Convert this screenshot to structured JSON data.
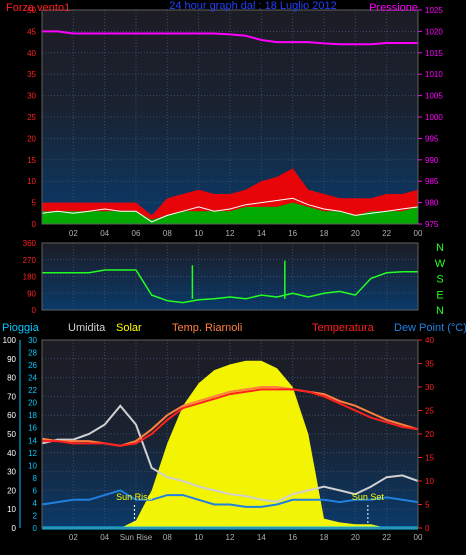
{
  "colors": {
    "wind": "#ff2020",
    "gust_fill": "#ff0000",
    "avg_fill": "#00aa00",
    "wind_line": "#ffffff",
    "pressure": "#ff00ff",
    "direction": "#22ff22",
    "rain": "#00c8ff",
    "humidity": "#d0d0d0",
    "solar": "#ffff00",
    "windchill": "#ff8040",
    "temperature": "#ff2020",
    "dewpoint": "#2080e0",
    "title": "#2040ff",
    "grid": "#3a4a6a"
  },
  "chart_data": [
    {
      "type": "area",
      "title": "24 hour graph dal : 18 Luglio 2012",
      "left_label": "Forza vento1",
      "right_label": "Pressione",
      "x_ticks": [
        "02",
        "04",
        "06",
        "08",
        "10",
        "12",
        "14",
        "16",
        "18",
        "20",
        "22",
        "00"
      ],
      "ylim_left": [
        0,
        50
      ],
      "y_ticks_left": [
        "0",
        "5",
        "10",
        "15",
        "20",
        "25",
        "30",
        "35",
        "40",
        "45",
        "50"
      ],
      "ylim_right": [
        975,
        1025
      ],
      "y_ticks_right": [
        "975",
        "980",
        "985",
        "990",
        "995",
        "1000",
        "1005",
        "1010",
        "1015",
        "1020",
        "1025"
      ],
      "x": [
        "00",
        "01",
        "02",
        "03",
        "04",
        "05",
        "06",
        "07",
        "08",
        "09",
        "10",
        "11",
        "12",
        "13",
        "14",
        "15",
        "16",
        "17",
        "18",
        "19",
        "20",
        "21",
        "22",
        "23",
        "24"
      ],
      "series": [
        {
          "key": "gust",
          "values": [
            5,
            5,
            5,
            5,
            5,
            5,
            5,
            2,
            6,
            7,
            8,
            7,
            7,
            8,
            10,
            11,
            13,
            8,
            7,
            6,
            6,
            6,
            7,
            7,
            8
          ]
        },
        {
          "key": "avg",
          "values": [
            3,
            3,
            3,
            3,
            3,
            3,
            3,
            1,
            2,
            3,
            3,
            3,
            3,
            4,
            4,
            4,
            5,
            4,
            3,
            3,
            2,
            3,
            3,
            3,
            4
          ]
        },
        {
          "key": "wind",
          "values": [
            2.5,
            3,
            2.5,
            3,
            3.5,
            3,
            3,
            0.5,
            2,
            3,
            4,
            3,
            3.5,
            4.5,
            5,
            5.5,
            6,
            4.5,
            3.5,
            3,
            2,
            2.5,
            3,
            3.5,
            4
          ]
        },
        {
          "key": "pressure",
          "values": [
            1020,
            1020,
            1019.5,
            1019.5,
            1019.5,
            1019.5,
            1019.5,
            1019.5,
            1019.5,
            1019.5,
            1019.5,
            1019.5,
            1019.3,
            1019,
            1018,
            1017.5,
            1017.5,
            1017.5,
            1017.2,
            1017,
            1017,
            1017,
            1017.3,
            1017.3,
            1017.3
          ]
        }
      ]
    },
    {
      "type": "line",
      "right_labels": [
        "N",
        "W",
        "S",
        "E",
        "N"
      ],
      "ylim": [
        0,
        360
      ],
      "y_ticks": [
        "0",
        "90",
        "180",
        "270",
        "360"
      ],
      "x": [
        "00",
        "01",
        "02",
        "03",
        "04",
        "05",
        "06",
        "07",
        "08",
        "09",
        "10",
        "11",
        "12",
        "13",
        "14",
        "15",
        "16",
        "17",
        "18",
        "19",
        "20",
        "21",
        "22",
        "23",
        "24"
      ],
      "series": [
        {
          "key": "direction",
          "values": [
            200,
            200,
            200,
            200,
            215,
            215,
            215,
            80,
            50,
            40,
            55,
            60,
            70,
            60,
            80,
            70,
            90,
            70,
            90,
            100,
            80,
            170,
            200,
            205,
            205
          ]
        }
      ],
      "spikes": [
        {
          "x": 9.6,
          "value": 240
        },
        {
          "x": 15.5,
          "value": 265
        }
      ]
    },
    {
      "type": "line",
      "legend": [
        "Pioggia",
        "Umidita",
        "Solar",
        "Temp. Riarnoli",
        "Temperatura",
        "Dew Point (°C)"
      ],
      "x_ticks": [
        "02",
        "04",
        "Sun Rise",
        "08",
        "10",
        "12",
        "14",
        "16",
        "18",
        "20",
        "22",
        "00"
      ],
      "ylim_outer": [
        0,
        100
      ],
      "y_ticks_outer": [
        "0",
        "10",
        "20",
        "30",
        "40",
        "50",
        "60",
        "70",
        "80",
        "90",
        "100"
      ],
      "ylim_inner": [
        0,
        30
      ],
      "y_ticks_inner": [
        "0",
        "2",
        "4",
        "6",
        "8",
        "10",
        "12",
        "14",
        "16",
        "18",
        "20",
        "22",
        "24",
        "26",
        "28",
        "30"
      ],
      "ylim_right": [
        0,
        40
      ],
      "y_ticks_right": [
        "0",
        "5",
        "10",
        "15",
        "20",
        "25",
        "30",
        "35",
        "40"
      ],
      "annotations": [
        {
          "text": "Sun Rise",
          "x": 5.9
        },
        {
          "text": "Sun Set",
          "x": 20.8
        }
      ],
      "x": [
        "00",
        "01",
        "02",
        "03",
        "04",
        "05",
        "06",
        "07",
        "08",
        "09",
        "10",
        "11",
        "12",
        "13",
        "14",
        "15",
        "16",
        "17",
        "18",
        "19",
        "20",
        "21",
        "22",
        "23",
        "24"
      ],
      "series": [
        {
          "key": "humidity",
          "values": [
            45,
            47,
            47,
            50,
            55,
            65,
            55,
            32,
            27,
            25,
            22,
            20,
            18,
            17,
            15,
            14,
            18,
            20,
            22,
            20,
            18,
            22,
            27,
            28,
            25
          ]
        },
        {
          "key": "solar",
          "values": [
            0,
            0,
            0,
            0,
            0,
            0,
            4,
            20,
            45,
            65,
            77,
            84,
            87,
            89,
            89,
            85,
            75,
            50,
            5,
            3,
            2,
            2,
            0,
            0,
            0
          ]
        },
        {
          "key": "windchill",
          "values": [
            19,
            18.5,
            18.5,
            18.5,
            18,
            17.5,
            18.5,
            21,
            24,
            26,
            27,
            28,
            29,
            29.5,
            30,
            30,
            29.5,
            29,
            28.5,
            27,
            26,
            24.5,
            23,
            22,
            21
          ]
        },
        {
          "key": "temperature",
          "values": [
            18.5,
            18.5,
            18,
            18,
            18,
            17.5,
            18,
            20,
            23,
            25.5,
            26.5,
            27.5,
            28.5,
            29,
            29.5,
            29.5,
            29.5,
            29,
            28,
            26.5,
            25,
            23.5,
            22.5,
            21.5,
            21
          ]
        },
        {
          "key": "dewpoint",
          "values": [
            5,
            5.5,
            6,
            6,
            7,
            8,
            6,
            6,
            7,
            7,
            6,
            5,
            5,
            4.5,
            4.5,
            5,
            6,
            6,
            6,
            5.5,
            6,
            6,
            6.5,
            6,
            5.5
          ]
        },
        {
          "key": "rain",
          "values": [
            0,
            0,
            0,
            0,
            0,
            0,
            0,
            0,
            0,
            0,
            0,
            0,
            0,
            0,
            0,
            0,
            0,
            0,
            0,
            0,
            0,
            0,
            0,
            0,
            0
          ]
        }
      ]
    }
  ]
}
